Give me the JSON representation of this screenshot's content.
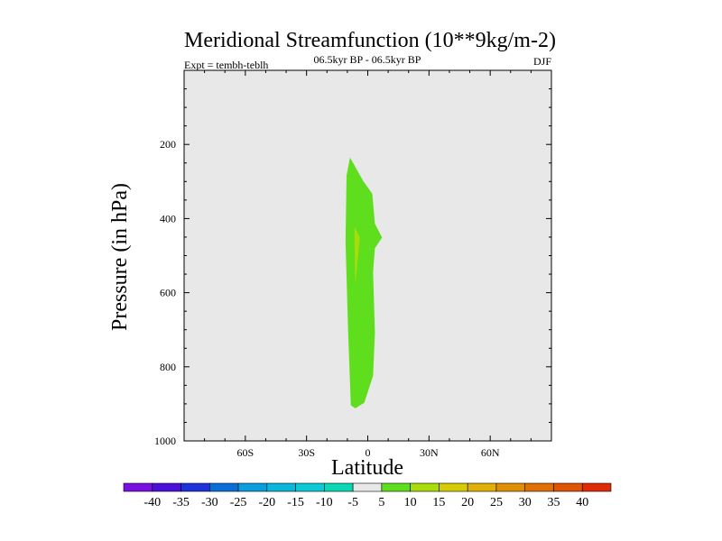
{
  "chart_data": {
    "type": "contour",
    "title": "Meridional Streamfunction (10**9kg/m-2)",
    "subtitle_left": "Expt = tembh-teblh",
    "subtitle_center": "06.5kyr BP - 06.5kyr BP",
    "subtitle_right": "DJF",
    "xlabel": "Latitude",
    "ylabel": "Pressure (in hPa)",
    "xlim": [
      -90,
      90
    ],
    "ylim": [
      1000,
      0
    ],
    "x_ticks": [
      {
        "v": -60,
        "label": "60S"
      },
      {
        "v": -30,
        "label": "30S"
      },
      {
        "v": 0,
        "label": "0"
      },
      {
        "v": 30,
        "label": "30N"
      },
      {
        "v": 60,
        "label": "60N"
      }
    ],
    "y_ticks": [
      {
        "v": 200,
        "label": "200"
      },
      {
        "v": 400,
        "label": "400"
      },
      {
        "v": 600,
        "label": "600"
      },
      {
        "v": 800,
        "label": "800"
      },
      {
        "v": 1000,
        "label": "1000"
      }
    ],
    "background_color": "#e8e8e8",
    "regions": [
      {
        "level": "5 to 10",
        "color": "#5ede1c",
        "points": [
          [
            -8.7,
            235
          ],
          [
            -2.2,
            299
          ],
          [
            2.2,
            333
          ],
          [
            3.5,
            414
          ],
          [
            7.0,
            451
          ],
          [
            3.5,
            480
          ],
          [
            2.6,
            544
          ],
          [
            3.5,
            708
          ],
          [
            2.6,
            824
          ],
          [
            -1.7,
            897
          ],
          [
            -6.1,
            912
          ],
          [
            -8.3,
            904
          ],
          [
            -9.6,
            708
          ],
          [
            -10.9,
            463
          ],
          [
            -10.4,
            284
          ]
        ]
      },
      {
        "level": "10 to 15",
        "color": "#a8dc0a",
        "points": [
          [
            -6.5,
            422
          ],
          [
            -3.9,
            451
          ],
          [
            -6.1,
            578
          ],
          [
            -6.5,
            463
          ]
        ]
      }
    ],
    "colorbar": {
      "labels": [
        "-40",
        "-35",
        "-30",
        "-25",
        "-20",
        "-15",
        "-10",
        "-5",
        "5",
        "10",
        "15",
        "20",
        "25",
        "30",
        "35",
        "40"
      ],
      "colors": [
        "#7a10e0",
        "#4a12d8",
        "#1e32dc",
        "#0a6ed8",
        "#0a9ede",
        "#0ab6dc",
        "#0acad8",
        "#0ad8b4",
        "#e8e8e8",
        "#5ede1c",
        "#a8dc0a",
        "#d6cc06",
        "#e0b006",
        "#e08e06",
        "#e07006",
        "#e05406",
        "#e02c06"
      ]
    }
  }
}
